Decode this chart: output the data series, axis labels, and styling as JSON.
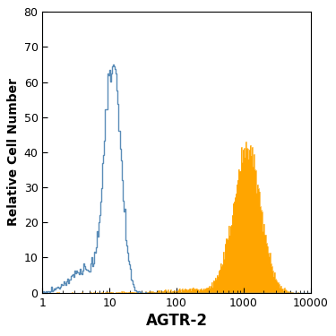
{
  "title": "",
  "xlabel": "AGTR-2",
  "ylabel": "Relative Cell Number",
  "xlim": [
    1.0,
    10000.0
  ],
  "ylim": [
    0,
    80
  ],
  "yticks": [
    0,
    10,
    20,
    30,
    40,
    50,
    60,
    70,
    80
  ],
  "xlabel_fontsize": 12,
  "ylabel_fontsize": 10,
  "tick_fontsize": 9,
  "open_histogram_color": "#5b8db8",
  "filled_histogram_color": "#FFA500",
  "background_color": "#ffffff",
  "spike_height": 80,
  "open_peak_log": 1.05,
  "open_peak_height": 65,
  "open_sigma": 0.28,
  "filled_peak_log": 3.05,
  "filled_peak_height": 43,
  "filled_sigma": 0.45,
  "n_bins": 300
}
